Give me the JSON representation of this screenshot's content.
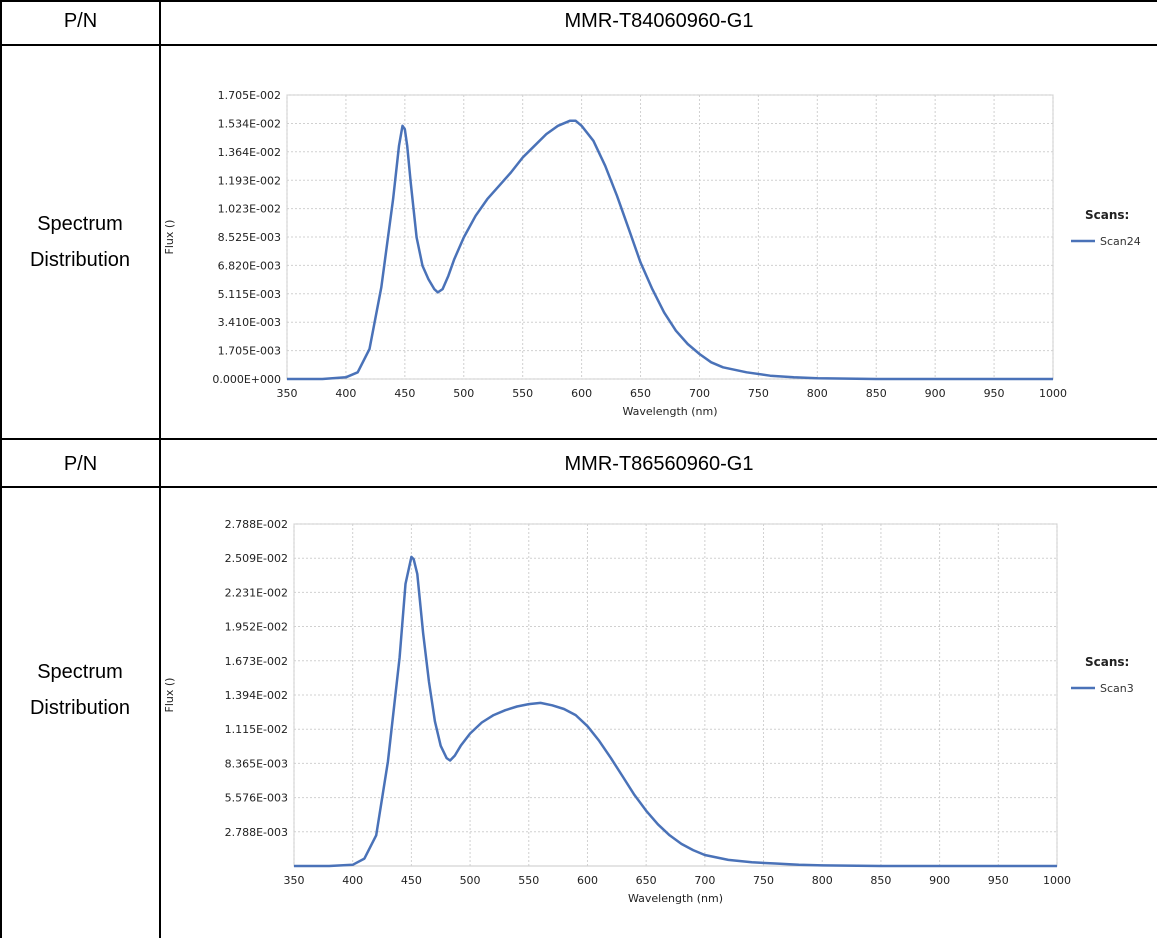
{
  "table": {
    "rows": [
      {
        "label": "P/N",
        "value": "MMR-T84060960-G1"
      },
      {
        "label_lines": [
          "Spectrum",
          "Distribution"
        ]
      },
      {
        "label": "P/N",
        "value": "MMR-T86560960-G1"
      },
      {
        "label_lines": [
          "Spectrum",
          "Distribution"
        ]
      }
    ]
  },
  "chart_data": [
    {
      "type": "line",
      "title": "",
      "xlabel": "Wavelength (nm)",
      "ylabel": "Flux ()",
      "xlim": [
        350,
        1000
      ],
      "ylim": [
        0,
        0.01705
      ],
      "x_ticks": [
        "350",
        "400",
        "450",
        "500",
        "550",
        "600",
        "650",
        "700",
        "750",
        "800",
        "850",
        "900",
        "950",
        "1000"
      ],
      "y_ticks": [
        "0.000E+000",
        "1.705E-003",
        "3.410E-003",
        "5.115E-003",
        "6.820E-003",
        "8.525E-003",
        "1.023E-002",
        "1.193E-002",
        "1.364E-002",
        "1.534E-002",
        "1.705E-002"
      ],
      "grid": true,
      "legend_title": "Scans:",
      "legend_position": "right",
      "series": [
        {
          "name": "Scan24",
          "color": "#4a72b8",
          "x": [
            350,
            380,
            400,
            410,
            420,
            430,
            440,
            445,
            448,
            450,
            452,
            455,
            460,
            465,
            470,
            475,
            478,
            482,
            487,
            492,
            500,
            510,
            520,
            530,
            540,
            550,
            560,
            570,
            580,
            590,
            595,
            600,
            610,
            620,
            630,
            640,
            650,
            660,
            670,
            680,
            690,
            700,
            710,
            720,
            740,
            760,
            780,
            800,
            850,
            900,
            950,
            1000
          ],
          "y": [
            0,
            0,
            0.0001,
            0.0004,
            0.0018,
            0.0055,
            0.0108,
            0.014,
            0.0152,
            0.015,
            0.014,
            0.0118,
            0.0085,
            0.0068,
            0.006,
            0.0054,
            0.0052,
            0.0054,
            0.0062,
            0.0072,
            0.0085,
            0.0098,
            0.0108,
            0.0116,
            0.0124,
            0.0133,
            0.014,
            0.0147,
            0.0152,
            0.0155,
            0.0155,
            0.0152,
            0.0143,
            0.0128,
            0.011,
            0.009,
            0.007,
            0.0054,
            0.004,
            0.0029,
            0.0021,
            0.0015,
            0.001,
            0.0007,
            0.0004,
            0.0002,
            0.0001,
            5e-05,
            0,
            0,
            0,
            0
          ]
        }
      ]
    },
    {
      "type": "line",
      "title": "",
      "xlabel": "Wavelength (nm)",
      "ylabel": "Flux ()",
      "xlim": [
        350,
        1000
      ],
      "ylim": [
        0,
        0.02788
      ],
      "x_ticks": [
        "350",
        "400",
        "450",
        "500",
        "550",
        "600",
        "650",
        "700",
        "750",
        "800",
        "850",
        "900",
        "950",
        "1000"
      ],
      "y_ticks": [
        "2.788E-003",
        "5.576E-003",
        "8.365E-003",
        "1.115E-002",
        "1.394E-002",
        "1.673E-002",
        "1.952E-002",
        "2.231E-002",
        "2.509E-002",
        "2.788E-002"
      ],
      "grid": true,
      "legend_title": "Scans:",
      "legend_position": "right",
      "series": [
        {
          "name": "Scan3",
          "color": "#4a72b8",
          "x": [
            350,
            380,
            400,
            410,
            420,
            430,
            440,
            445,
            450,
            452,
            455,
            460,
            465,
            470,
            475,
            480,
            483,
            487,
            492,
            500,
            510,
            520,
            530,
            540,
            550,
            560,
            570,
            580,
            590,
            600,
            610,
            620,
            630,
            640,
            650,
            660,
            670,
            680,
            690,
            700,
            720,
            740,
            760,
            780,
            800,
            850,
            900,
            950,
            1000
          ],
          "y": [
            0,
            0,
            0.0001,
            0.0006,
            0.0025,
            0.0085,
            0.017,
            0.023,
            0.0252,
            0.025,
            0.0238,
            0.019,
            0.015,
            0.0118,
            0.0098,
            0.0088,
            0.0086,
            0.009,
            0.0098,
            0.0108,
            0.0117,
            0.0123,
            0.0127,
            0.013,
            0.0132,
            0.0133,
            0.0131,
            0.0128,
            0.0123,
            0.0114,
            0.0102,
            0.0088,
            0.0073,
            0.0058,
            0.0045,
            0.0034,
            0.0025,
            0.0018,
            0.0013,
            0.0009,
            0.0005,
            0.0003,
            0.0002,
            0.0001,
            5e-05,
            0,
            0,
            0,
            0
          ]
        }
      ]
    }
  ]
}
